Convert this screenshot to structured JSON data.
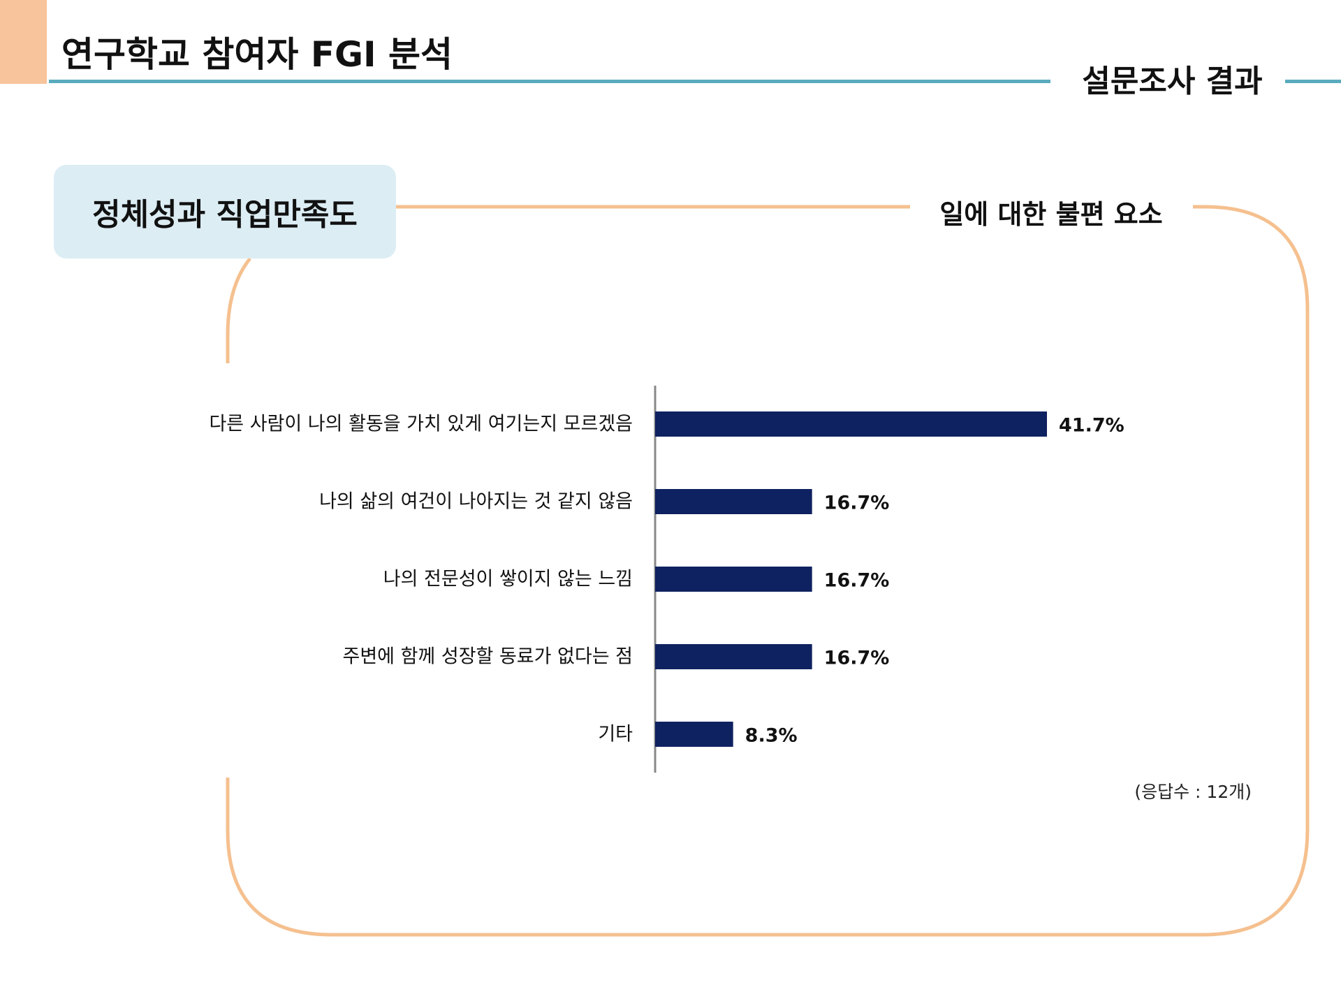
{
  "header": {
    "title": "연구학교 참여자 FGI 분석",
    "section": "설문조사 결과"
  },
  "topic": {
    "label": "정체성과 직업만족도",
    "subtopic": "일에 대한 불편 요소"
  },
  "colors": {
    "accent": "#f7c49b",
    "header_line": "#5aabbd",
    "frame": "#f5c08f",
    "topic_box": "#dcedf4",
    "bar": "#0e2160"
  },
  "chart_data": {
    "type": "bar",
    "orientation": "horizontal",
    "categories": [
      "다른 사람이 나의 활동을 가치 있게 여기는지 모르겠음",
      "나의 삶의 여건이 나아지는 것 같지 않음",
      "나의 전문성이 쌓이지 않는 느낌",
      "주변에 함께 성장할 동료가 없다는 점",
      "기타"
    ],
    "values": [
      41.7,
      16.7,
      16.7,
      16.7,
      8.3
    ],
    "value_labels": [
      "41.7%",
      "16.7%",
      "16.7%",
      "16.7%",
      "8.3%"
    ],
    "xlim": [
      0,
      41.7
    ],
    "grid": false,
    "legend": false
  },
  "footnote": "(응답수 : 12개)"
}
